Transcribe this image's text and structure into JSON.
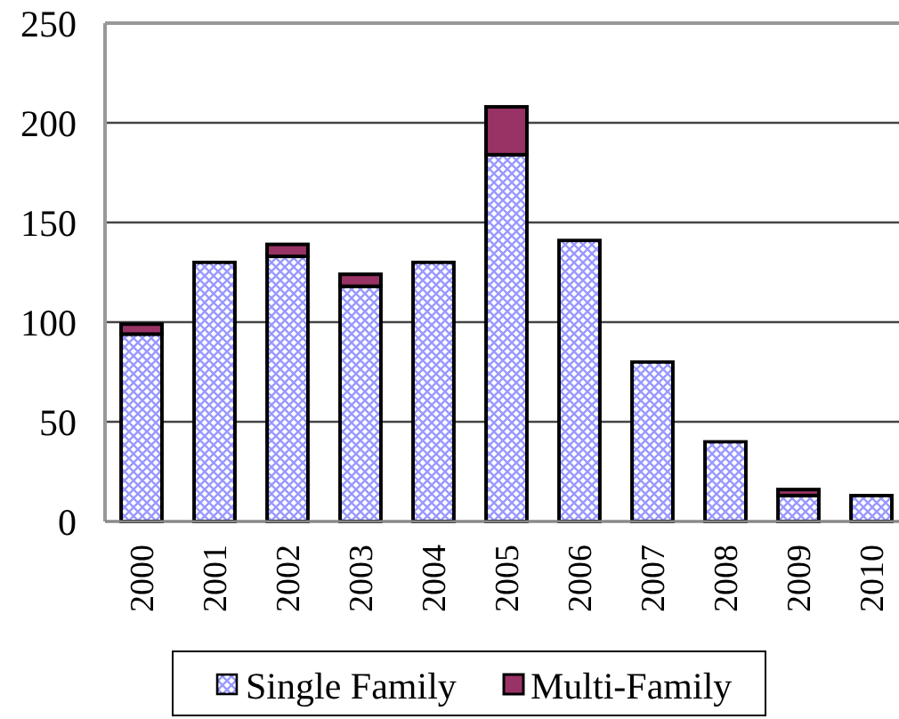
{
  "chart_data": {
    "type": "bar",
    "stacked": true,
    "categories": [
      "2000",
      "2001",
      "2002",
      "2003",
      "2004",
      "2005",
      "2006",
      "2007",
      "2008",
      "2009",
      "2010"
    ],
    "series": [
      {
        "name": "Single Family",
        "color": "#9999ff",
        "values": [
          94,
          130,
          133,
          118,
          130,
          184,
          141,
          80,
          40,
          13,
          13
        ]
      },
      {
        "name": "Multi-Family",
        "color": "#993366",
        "values": [
          5,
          0,
          6,
          6,
          0,
          24,
          0,
          0,
          0,
          3,
          0
        ]
      }
    ],
    "ylim": [
      0,
      250
    ],
    "yticks": [
      0,
      50,
      100,
      150,
      200,
      250
    ],
    "grid": "y",
    "legend": "bottom"
  }
}
